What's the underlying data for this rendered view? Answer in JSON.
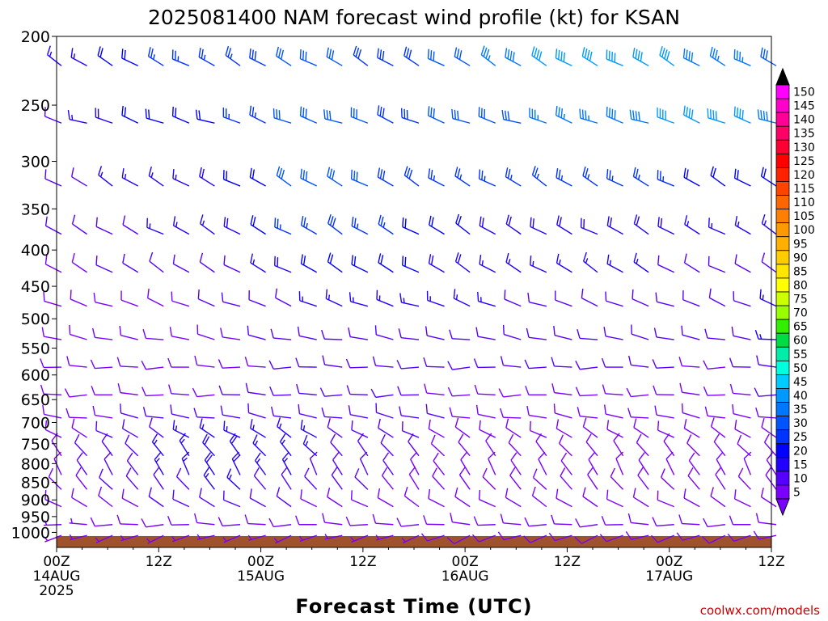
{
  "chart_data": {
    "type": "wind-barb-time-height",
    "title": "2025081400 NAM forecast wind profile (kt) for KSAN",
    "xlabel": "Forecast Time (UTC)",
    "ylabel": "",
    "credit": "coolwx.com/models",
    "x_range_hours": [
      0,
      84
    ],
    "x_ticks": [
      {
        "h": 0,
        "lines": [
          "00Z",
          "14AUG",
          "2025"
        ]
      },
      {
        "h": 12,
        "lines": [
          "12Z"
        ]
      },
      {
        "h": 24,
        "lines": [
          "00Z",
          "15AUG"
        ]
      },
      {
        "h": 36,
        "lines": [
          "12Z"
        ]
      },
      {
        "h": 48,
        "lines": [
          "00Z",
          "16AUG"
        ]
      },
      {
        "h": 60,
        "lines": [
          "12Z"
        ]
      },
      {
        "h": 72,
        "lines": [
          "00Z",
          "17AUG"
        ]
      },
      {
        "h": 84,
        "lines": [
          "12Z"
        ]
      }
    ],
    "y_axis": {
      "scale": "log-pressure",
      "unit": "hPa",
      "range": [
        1050,
        200
      ],
      "ticks": [
        200,
        250,
        300,
        350,
        400,
        450,
        500,
        550,
        600,
        650,
        700,
        750,
        800,
        850,
        900,
        950,
        1000
      ]
    },
    "colorbar": {
      "label_values": [
        150,
        145,
        140,
        135,
        130,
        125,
        120,
        115,
        110,
        105,
        100,
        95,
        90,
        85,
        80,
        75,
        70,
        65,
        60,
        55,
        50,
        45,
        40,
        35,
        30,
        25,
        20,
        15,
        10,
        5
      ],
      "colors": [
        "#ff00ff",
        "#ff00cc",
        "#ff0099",
        "#ff0066",
        "#ff0033",
        "#ff0000",
        "#ff2200",
        "#ff4400",
        "#ff6600",
        "#ff7f00",
        "#ff9900",
        "#ffb000",
        "#ffcc00",
        "#ffe600",
        "#ffff00",
        "#ccff00",
        "#99ff00",
        "#33ee00",
        "#00dd44",
        "#00eeaa",
        "#00ffdd",
        "#00ccff",
        "#0099ff",
        "#0077ff",
        "#0055ff",
        "#0033ff",
        "#0000ff",
        "#2200ff",
        "#5500ff",
        "#7a00ff"
      ]
    },
    "grid": false,
    "surface_fill_color": "#a0522d",
    "barb_levels_hpa": [
      220,
      265,
      325,
      380,
      430,
      480,
      535,
      585,
      640,
      690,
      735,
      780,
      830,
      870,
      920,
      975,
      1010
    ],
    "barb_times_h": [
      0,
      3,
      6,
      9,
      12,
      15,
      18,
      21,
      24,
      27,
      30,
      33,
      36,
      39,
      42,
      45,
      48,
      51,
      54,
      57,
      60,
      63,
      66,
      69,
      72,
      75,
      78,
      81,
      84
    ],
    "barb_field": {
      "220": {
        "dir": 300,
        "speeds": [
          15,
          15,
          20,
          22,
          25,
          25,
          25,
          25,
          28,
          30,
          30,
          30,
          28,
          28,
          28,
          30,
          32,
          35,
          38,
          40,
          40,
          42,
          42,
          40,
          40,
          38,
          35,
          35,
          32
        ]
      },
      "265": {
        "dir": 290,
        "speeds": [
          12,
          15,
          18,
          20,
          20,
          20,
          22,
          25,
          25,
          30,
          32,
          32,
          30,
          28,
          28,
          30,
          32,
          32,
          32,
          35,
          35,
          35,
          38,
          38,
          40,
          40,
          40,
          40,
          38
        ]
      },
      "325": {
        "dir": 300,
        "speeds": [
          12,
          12,
          15,
          15,
          15,
          15,
          18,
          20,
          22,
          30,
          32,
          32,
          30,
          28,
          28,
          25,
          25,
          25,
          25,
          25,
          25,
          25,
          25,
          25,
          25,
          22,
          22,
          20,
          20
        ]
      },
      "380": {
        "dir": 300,
        "speeds": [
          10,
          10,
          12,
          12,
          15,
          15,
          15,
          18,
          20,
          25,
          25,
          28,
          25,
          25,
          22,
          20,
          20,
          18,
          18,
          18,
          18,
          18,
          18,
          18,
          18,
          15,
          15,
          15,
          15
        ]
      },
      "430": {
        "dir": 300,
        "speeds": [
          8,
          8,
          10,
          10,
          10,
          10,
          12,
          12,
          15,
          18,
          20,
          22,
          22,
          20,
          20,
          18,
          18,
          15,
          15,
          15,
          15,
          15,
          15,
          15,
          12,
          12,
          12,
          12,
          12
        ]
      },
      "480": {
        "dir": 290,
        "speeds": [
          8,
          8,
          8,
          8,
          8,
          8,
          10,
          10,
          12,
          12,
          15,
          15,
          15,
          15,
          15,
          15,
          15,
          15,
          12,
          12,
          12,
          12,
          12,
          12,
          10,
          10,
          10,
          12,
          15
        ]
      },
      "535": {
        "dir": 280,
        "speeds": [
          8,
          8,
          8,
          8,
          8,
          8,
          8,
          8,
          10,
          10,
          12,
          12,
          12,
          12,
          12,
          12,
          12,
          12,
          12,
          12,
          12,
          12,
          12,
          12,
          12,
          10,
          10,
          12,
          15
        ]
      },
      "585": {
        "dir": 270,
        "speeds": [
          8,
          8,
          8,
          8,
          8,
          8,
          8,
          8,
          8,
          10,
          10,
          10,
          10,
          10,
          10,
          10,
          10,
          10,
          10,
          10,
          10,
          10,
          10,
          10,
          10,
          8,
          8,
          10,
          12
        ]
      },
      "640": {
        "dir": 270,
        "speeds": [
          8,
          8,
          8,
          8,
          8,
          8,
          8,
          10,
          10,
          10,
          10,
          10,
          10,
          10,
          10,
          8,
          8,
          8,
          8,
          8,
          8,
          8,
          8,
          8,
          8,
          8,
          8,
          8,
          10
        ]
      },
      "690": {
        "dir": 280,
        "speeds": [
          8,
          8,
          8,
          10,
          10,
          12,
          12,
          12,
          12,
          12,
          12,
          12,
          10,
          10,
          10,
          10,
          8,
          8,
          8,
          8,
          8,
          8,
          8,
          8,
          8,
          8,
          8,
          8,
          8
        ]
      },
      "735": {
        "dir": 300,
        "speeds": [
          8,
          8,
          10,
          10,
          12,
          15,
          15,
          15,
          15,
          15,
          15,
          12,
          12,
          10,
          10,
          8,
          8,
          8,
          8,
          8,
          8,
          8,
          8,
          8,
          8,
          8,
          8,
          8,
          8
        ]
      },
      "780": {
        "dir": 320,
        "speeds": [
          8,
          10,
          10,
          12,
          15,
          15,
          18,
          18,
          15,
          15,
          15,
          12,
          12,
          10,
          10,
          8,
          8,
          8,
          8,
          8,
          8,
          8,
          8,
          8,
          8,
          8,
          8,
          8,
          8
        ]
      },
      "830": {
        "dir": 330,
        "speeds": [
          8,
          10,
          12,
          12,
          15,
          15,
          18,
          18,
          15,
          15,
          12,
          12,
          10,
          10,
          8,
          8,
          8,
          8,
          8,
          8,
          8,
          8,
          8,
          8,
          8,
          8,
          8,
          8,
          8
        ]
      },
      "870": {
        "dir": 320,
        "speeds": [
          8,
          8,
          10,
          10,
          12,
          12,
          15,
          15,
          12,
          12,
          10,
          10,
          10,
          8,
          8,
          8,
          8,
          8,
          8,
          8,
          8,
          8,
          8,
          8,
          8,
          8,
          8,
          8,
          8
        ]
      },
      "920": {
        "dir": 300,
        "speeds": [
          8,
          8,
          8,
          8,
          10,
          10,
          10,
          10,
          10,
          10,
          8,
          8,
          8,
          8,
          8,
          8,
          8,
          8,
          8,
          8,
          8,
          8,
          8,
          8,
          8,
          8,
          8,
          8,
          8
        ]
      },
      "975": {
        "dir": 270,
        "speeds": [
          5,
          5,
          8,
          8,
          8,
          8,
          8,
          8,
          8,
          8,
          8,
          8,
          8,
          8,
          8,
          8,
          8,
          8,
          8,
          8,
          8,
          8,
          8,
          8,
          8,
          8,
          8,
          8,
          8
        ]
      },
      "1010": {
        "dir": 250,
        "speeds": [
          5,
          5,
          5,
          5,
          5,
          5,
          5,
          5,
          5,
          5,
          5,
          5,
          5,
          5,
          5,
          8,
          8,
          8,
          8,
          8,
          8,
          8,
          8,
          8,
          8,
          8,
          8,
          8,
          8
        ]
      }
    }
  }
}
